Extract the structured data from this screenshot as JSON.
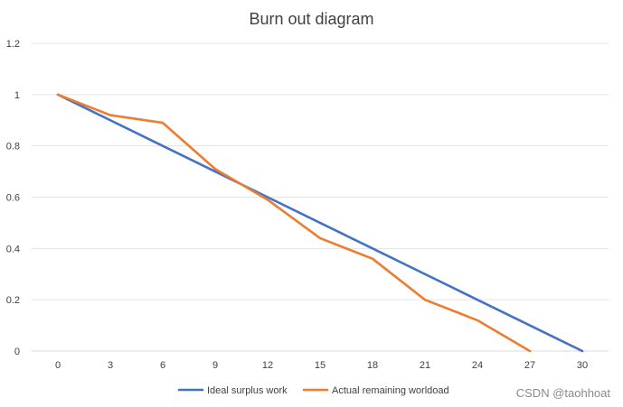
{
  "chart_data": {
    "type": "line",
    "title": "Burn out diagram",
    "xlabel": "",
    "ylabel": "",
    "x": [
      0,
      3,
      6,
      9,
      12,
      15,
      18,
      21,
      24,
      27,
      30
    ],
    "x_ticks": [
      "0",
      "3",
      "6",
      "9",
      "12",
      "15",
      "18",
      "21",
      "24",
      "27",
      "30"
    ],
    "y_ticks": [
      "0",
      "0.2",
      "0.4",
      "0.6",
      "0.8",
      "1",
      "1.2"
    ],
    "ylim": [
      0,
      1.2
    ],
    "grid": true,
    "legend_position": "bottom",
    "series": [
      {
        "name": "Ideal surplus work",
        "color": "#4472c4",
        "x": [
          0,
          3,
          6,
          9,
          12,
          15,
          18,
          21,
          24,
          27,
          30
        ],
        "values": [
          1.0,
          0.9,
          0.8,
          0.7,
          0.6,
          0.5,
          0.4,
          0.3,
          0.2,
          0.1,
          0.0
        ]
      },
      {
        "name": "Actual remaining worldoad",
        "color": "#ed7d31",
        "x": [
          0,
          3,
          6,
          9,
          12,
          15,
          18,
          21,
          24,
          27
        ],
        "values": [
          1.0,
          0.92,
          0.89,
          0.71,
          0.59,
          0.44,
          0.36,
          0.2,
          0.12,
          0.0
        ]
      }
    ]
  },
  "watermark": "CSDN @taohhoat"
}
